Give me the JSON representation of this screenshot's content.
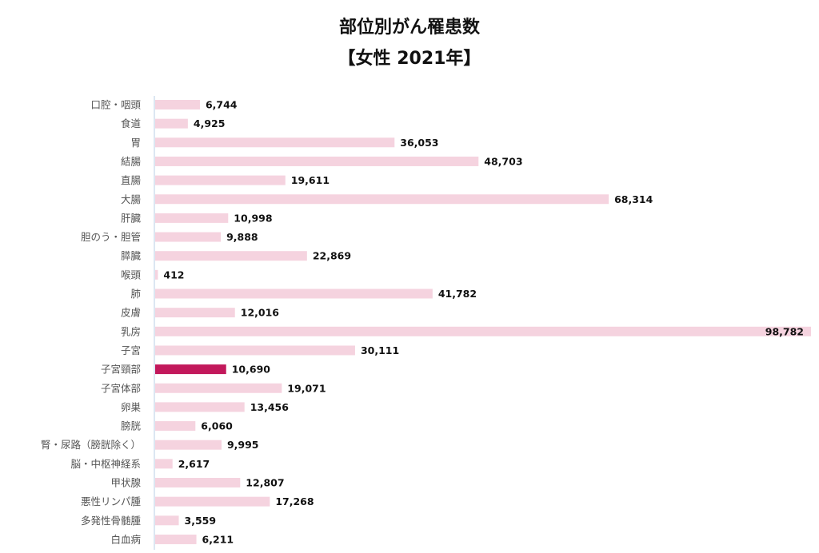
{
  "chart_data": {
    "type": "bar",
    "orientation": "horizontal",
    "title_line_1": "部位別がん罹患数",
    "title_line_2": "【女性 2021年】",
    "categories": [
      "口腔・咽頭",
      "食道",
      "胃",
      "結腸",
      "直腸",
      "大腸",
      "肝臓",
      "胆のう・胆管",
      "膵臓",
      "喉頭",
      "肺",
      "皮膚",
      "乳房",
      "子宮",
      "子宮頸部",
      "子宮体部",
      "卵巣",
      "膀胱",
      "腎・尿路（膀胱除く）",
      "脳・中枢神経系",
      "甲状腺",
      "悪性リンパ腫",
      "多発性骨髄腫",
      "白血病"
    ],
    "values": [
      6744,
      4925,
      36053,
      48703,
      19611,
      68314,
      10998,
      9888,
      22869,
      412,
      41782,
      12016,
      98782,
      30111,
      10690,
      19071,
      13456,
      6060,
      9995,
      2617,
      12807,
      17268,
      3559,
      6211
    ],
    "value_labels": [
      "6,744",
      "4,925",
      "36,053",
      "48,703",
      "19,611",
      "68,314",
      "10,998",
      "9,888",
      "22,869",
      "412",
      "41,782",
      "12,016",
      "98,782",
      "30,111",
      "10,690",
      "19,071",
      "13,456",
      "6,060",
      "9,995",
      "2,617",
      "12,807",
      "17,268",
      "3,559",
      "6,211"
    ],
    "highlight_category": "子宮頸部",
    "xlim": [
      0,
      98782
    ],
    "grid": false,
    "legend": "none",
    "bar_color": "#f5d3df",
    "highlight_color": "#c2185b",
    "axis_color": "#b8cfe6"
  }
}
